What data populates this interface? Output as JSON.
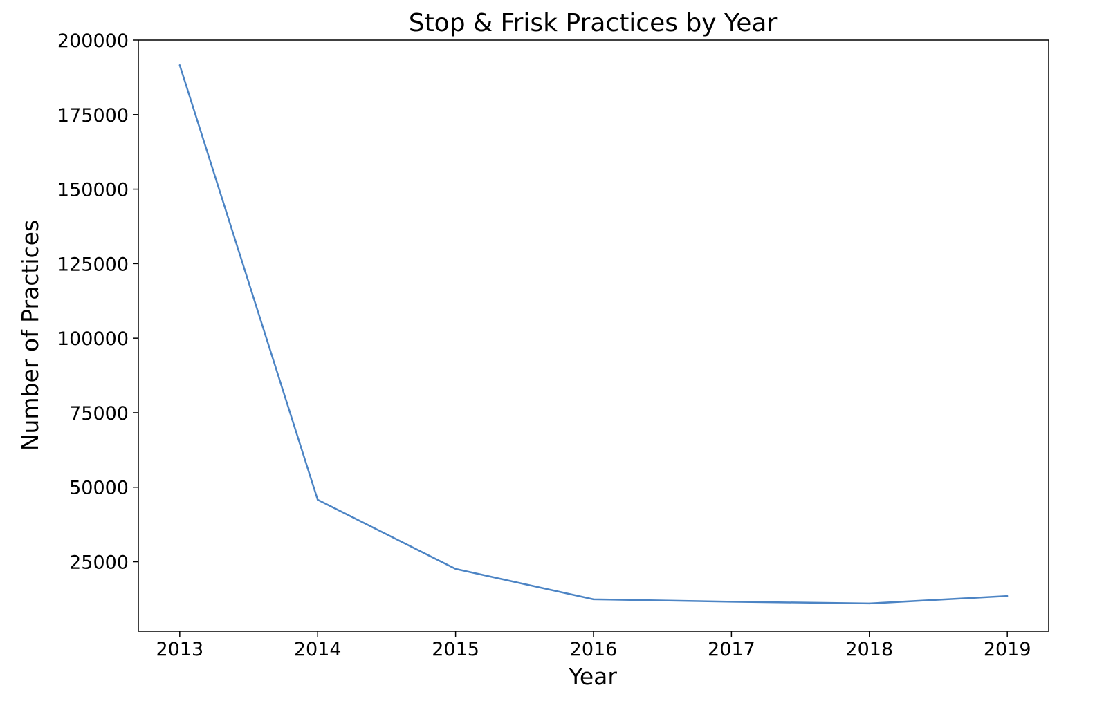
{
  "chart_data": {
    "type": "line",
    "title": "Stop & Frisk Practices by Year",
    "xlabel": "Year",
    "ylabel": "Number of Practices",
    "x": [
      2013,
      2014,
      2015,
      2016,
      2017,
      2018,
      2019
    ],
    "series": [
      {
        "values": [
          191600,
          45800,
          22600,
          12400,
          11600,
          11000,
          13500
        ],
        "color": "#4c84c4"
      }
    ],
    "xticks": [
      "2013",
      "2014",
      "2015",
      "2016",
      "2017",
      "2018",
      "2019"
    ],
    "yticks": [
      "25000",
      "50000",
      "75000",
      "100000",
      "125000",
      "150000",
      "175000",
      "200000"
    ],
    "xlim": [
      2012.7,
      2019.3
    ],
    "ylim": [
      1700,
      200000
    ],
    "grid": false,
    "legend": "none"
  }
}
